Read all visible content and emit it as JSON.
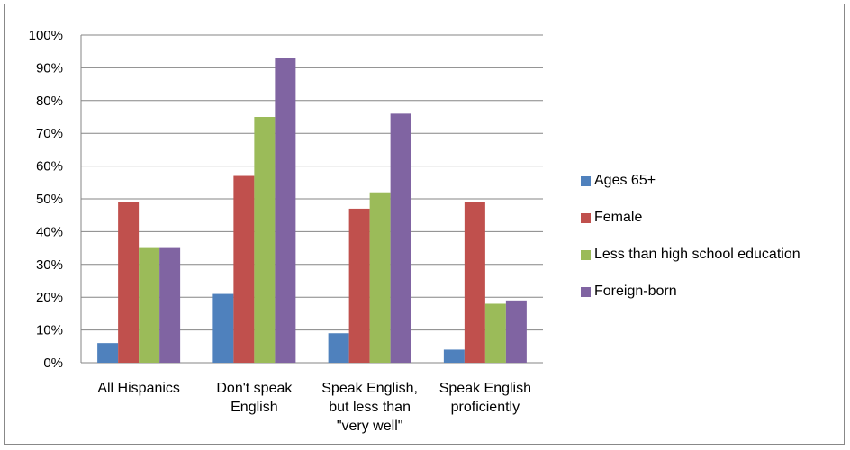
{
  "chart_data": {
    "type": "bar",
    "categories": [
      [
        "All Hispanics"
      ],
      [
        "Don't speak",
        "English"
      ],
      [
        "Speak English,",
        "but less than",
        "\"very well\""
      ],
      [
        "Speak English",
        "proficiently"
      ]
    ],
    "series": [
      {
        "name": "Ages 65+",
        "color": "#4F81BD",
        "values": [
          6,
          21,
          9,
          4
        ]
      },
      {
        "name": "Female",
        "color": "#C0504D",
        "values": [
          49,
          57,
          47,
          49
        ]
      },
      {
        "name": "Less than high school education",
        "color": "#9BBB59",
        "values": [
          35,
          75,
          52,
          18
        ]
      },
      {
        "name": "Foreign-born",
        "color": "#8064A2",
        "values": [
          35,
          93,
          76,
          19
        ]
      }
    ],
    "ylim": [
      0,
      100
    ],
    "yticks": [
      "0%",
      "10%",
      "20%",
      "30%",
      "40%",
      "50%",
      "60%",
      "70%",
      "80%",
      "90%",
      "100%"
    ],
    "grid": true,
    "legend": "right",
    "title": "",
    "xlabel": "",
    "ylabel": ""
  }
}
